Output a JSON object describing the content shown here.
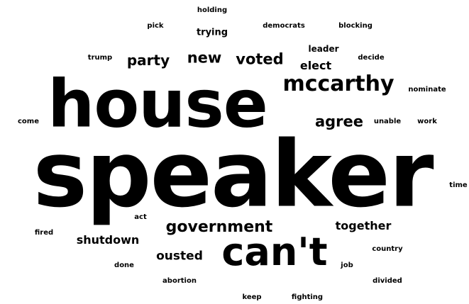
{
  "words": {
    "speaker": "speaker",
    "house": "house",
    "cant": "can't",
    "mccarthy": "mccarthy",
    "government": "government",
    "agree": "agree",
    "new": "new",
    "voted": "voted",
    "party": "party",
    "together": "together",
    "shutdown": "shutdown",
    "ousted": "ousted",
    "elect": "elect",
    "leader": "leader",
    "trying": "trying",
    "holding": "holding",
    "pick": "pick",
    "democrats": "democrats",
    "blocking": "blocking",
    "trump": "trump",
    "decide": "decide",
    "nominate": "nominate",
    "come": "come",
    "unable": "unable",
    "work": "work",
    "time": "time",
    "act": "act",
    "fired": "fired",
    "done": "done",
    "job": "job",
    "country": "country",
    "abortion": "abortion",
    "divided": "divided",
    "keep": "keep",
    "fighting": "fighting"
  },
  "colors": {
    "text": "#000000",
    "background": "#ffffff"
  }
}
